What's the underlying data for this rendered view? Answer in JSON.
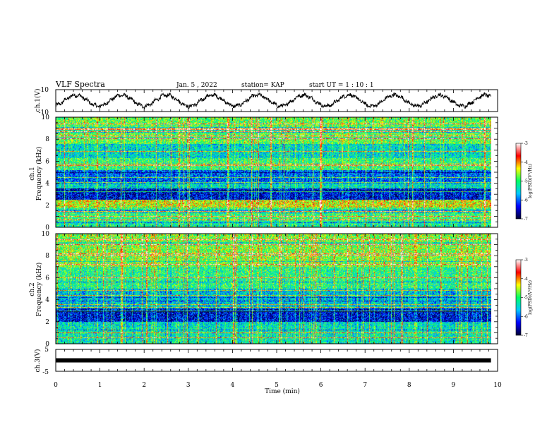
{
  "header": {
    "title": "VLF Spectra",
    "date": "Jan. 5 , 2022",
    "station": "station= KAP",
    "start": "start UT = 1 : 10 : 1"
  },
  "chart_data": {
    "type": "heatmap",
    "x_axis": {
      "label": "Time (min)",
      "range": [
        0,
        10
      ],
      "ticks": [
        "0",
        "1",
        "2",
        "3",
        "4",
        "5",
        "6",
        "7",
        "8",
        "9",
        "10"
      ]
    },
    "panels": [
      {
        "kind": "waveform",
        "ylabel": "ch.1(V)",
        "ylim": [
          -10,
          10
        ],
        "yticks": [
          "10",
          "-10"
        ],
        "data_end_min": 9.85,
        "oscillation_period_min": 1.03,
        "amplitude_v": 5
      },
      {
        "kind": "spectrogram",
        "ylabel_channel": "ch.1",
        "ylabel": "Frequency (kHz)",
        "ylim": [
          0,
          10
        ],
        "yticks": [
          "0",
          "2",
          "4",
          "6",
          "8",
          "10"
        ],
        "data_end_min": 9.85,
        "colorbar": {
          "label": "log(PSD)(V²/Hz)",
          "range": [
            -7,
            -3
          ],
          "ticks": [
            "-3",
            "-4",
            "-5",
            "-6",
            "-7"
          ],
          "colors": [
            "#000033",
            "#0000ff",
            "#00c8ff",
            "#00ff66",
            "#ffff00",
            "#ff0000",
            "#ffffff"
          ]
        },
        "bands_khz": [
          {
            "from": 0,
            "to": 0.6,
            "level": -5.2
          },
          {
            "from": 0.6,
            "to": 1.8,
            "level": -5.0
          },
          {
            "from": 1.8,
            "to": 2.5,
            "level": -4.4
          },
          {
            "from": 2.5,
            "to": 3.5,
            "level": -6.4
          },
          {
            "from": 3.5,
            "to": 4.0,
            "level": -5.4
          },
          {
            "from": 4.0,
            "to": 5.2,
            "level": -6.0
          },
          {
            "from": 5.2,
            "to": 6.3,
            "level": -5.0
          },
          {
            "from": 6.3,
            "to": 7.5,
            "level": -5.4
          },
          {
            "from": 7.5,
            "to": 10.0,
            "level": -4.8
          }
        ]
      },
      {
        "kind": "spectrogram",
        "ylabel_channel": "ch.2",
        "ylabel": "Frequency (kHz)",
        "ylim": [
          0,
          10
        ],
        "yticks": [
          "0",
          "2",
          "4",
          "6",
          "8",
          "10"
        ],
        "data_end_min": 9.85,
        "colorbar": {
          "label": "log(PSD)(V²/Hz)",
          "range": [
            -7,
            -3
          ],
          "ticks": [
            "-3",
            "-4",
            "-5",
            "-6",
            "-7"
          ],
          "colors": [
            "#000033",
            "#0000ff",
            "#00c8ff",
            "#00ff66",
            "#ffff00",
            "#ff0000",
            "#ffffff"
          ]
        },
        "bands_khz": [
          {
            "from": 0,
            "to": 1.5,
            "level": -5.3
          },
          {
            "from": 1.5,
            "to": 2.0,
            "level": -5.4
          },
          {
            "from": 2.0,
            "to": 3.2,
            "level": -6.4
          },
          {
            "from": 3.2,
            "to": 4.0,
            "level": -5.6
          },
          {
            "from": 4.0,
            "to": 5.0,
            "level": -5.6
          },
          {
            "from": 5.0,
            "to": 7.0,
            "level": -5.1
          },
          {
            "from": 7.0,
            "to": 10.0,
            "level": -4.7
          }
        ]
      },
      {
        "kind": "level",
        "ylabel": "ch.3(V)",
        "ylim": [
          -5,
          5
        ],
        "yticks": [
          "5",
          "-5"
        ],
        "value_v": 0,
        "data_end_min": 9.85
      }
    ]
  }
}
